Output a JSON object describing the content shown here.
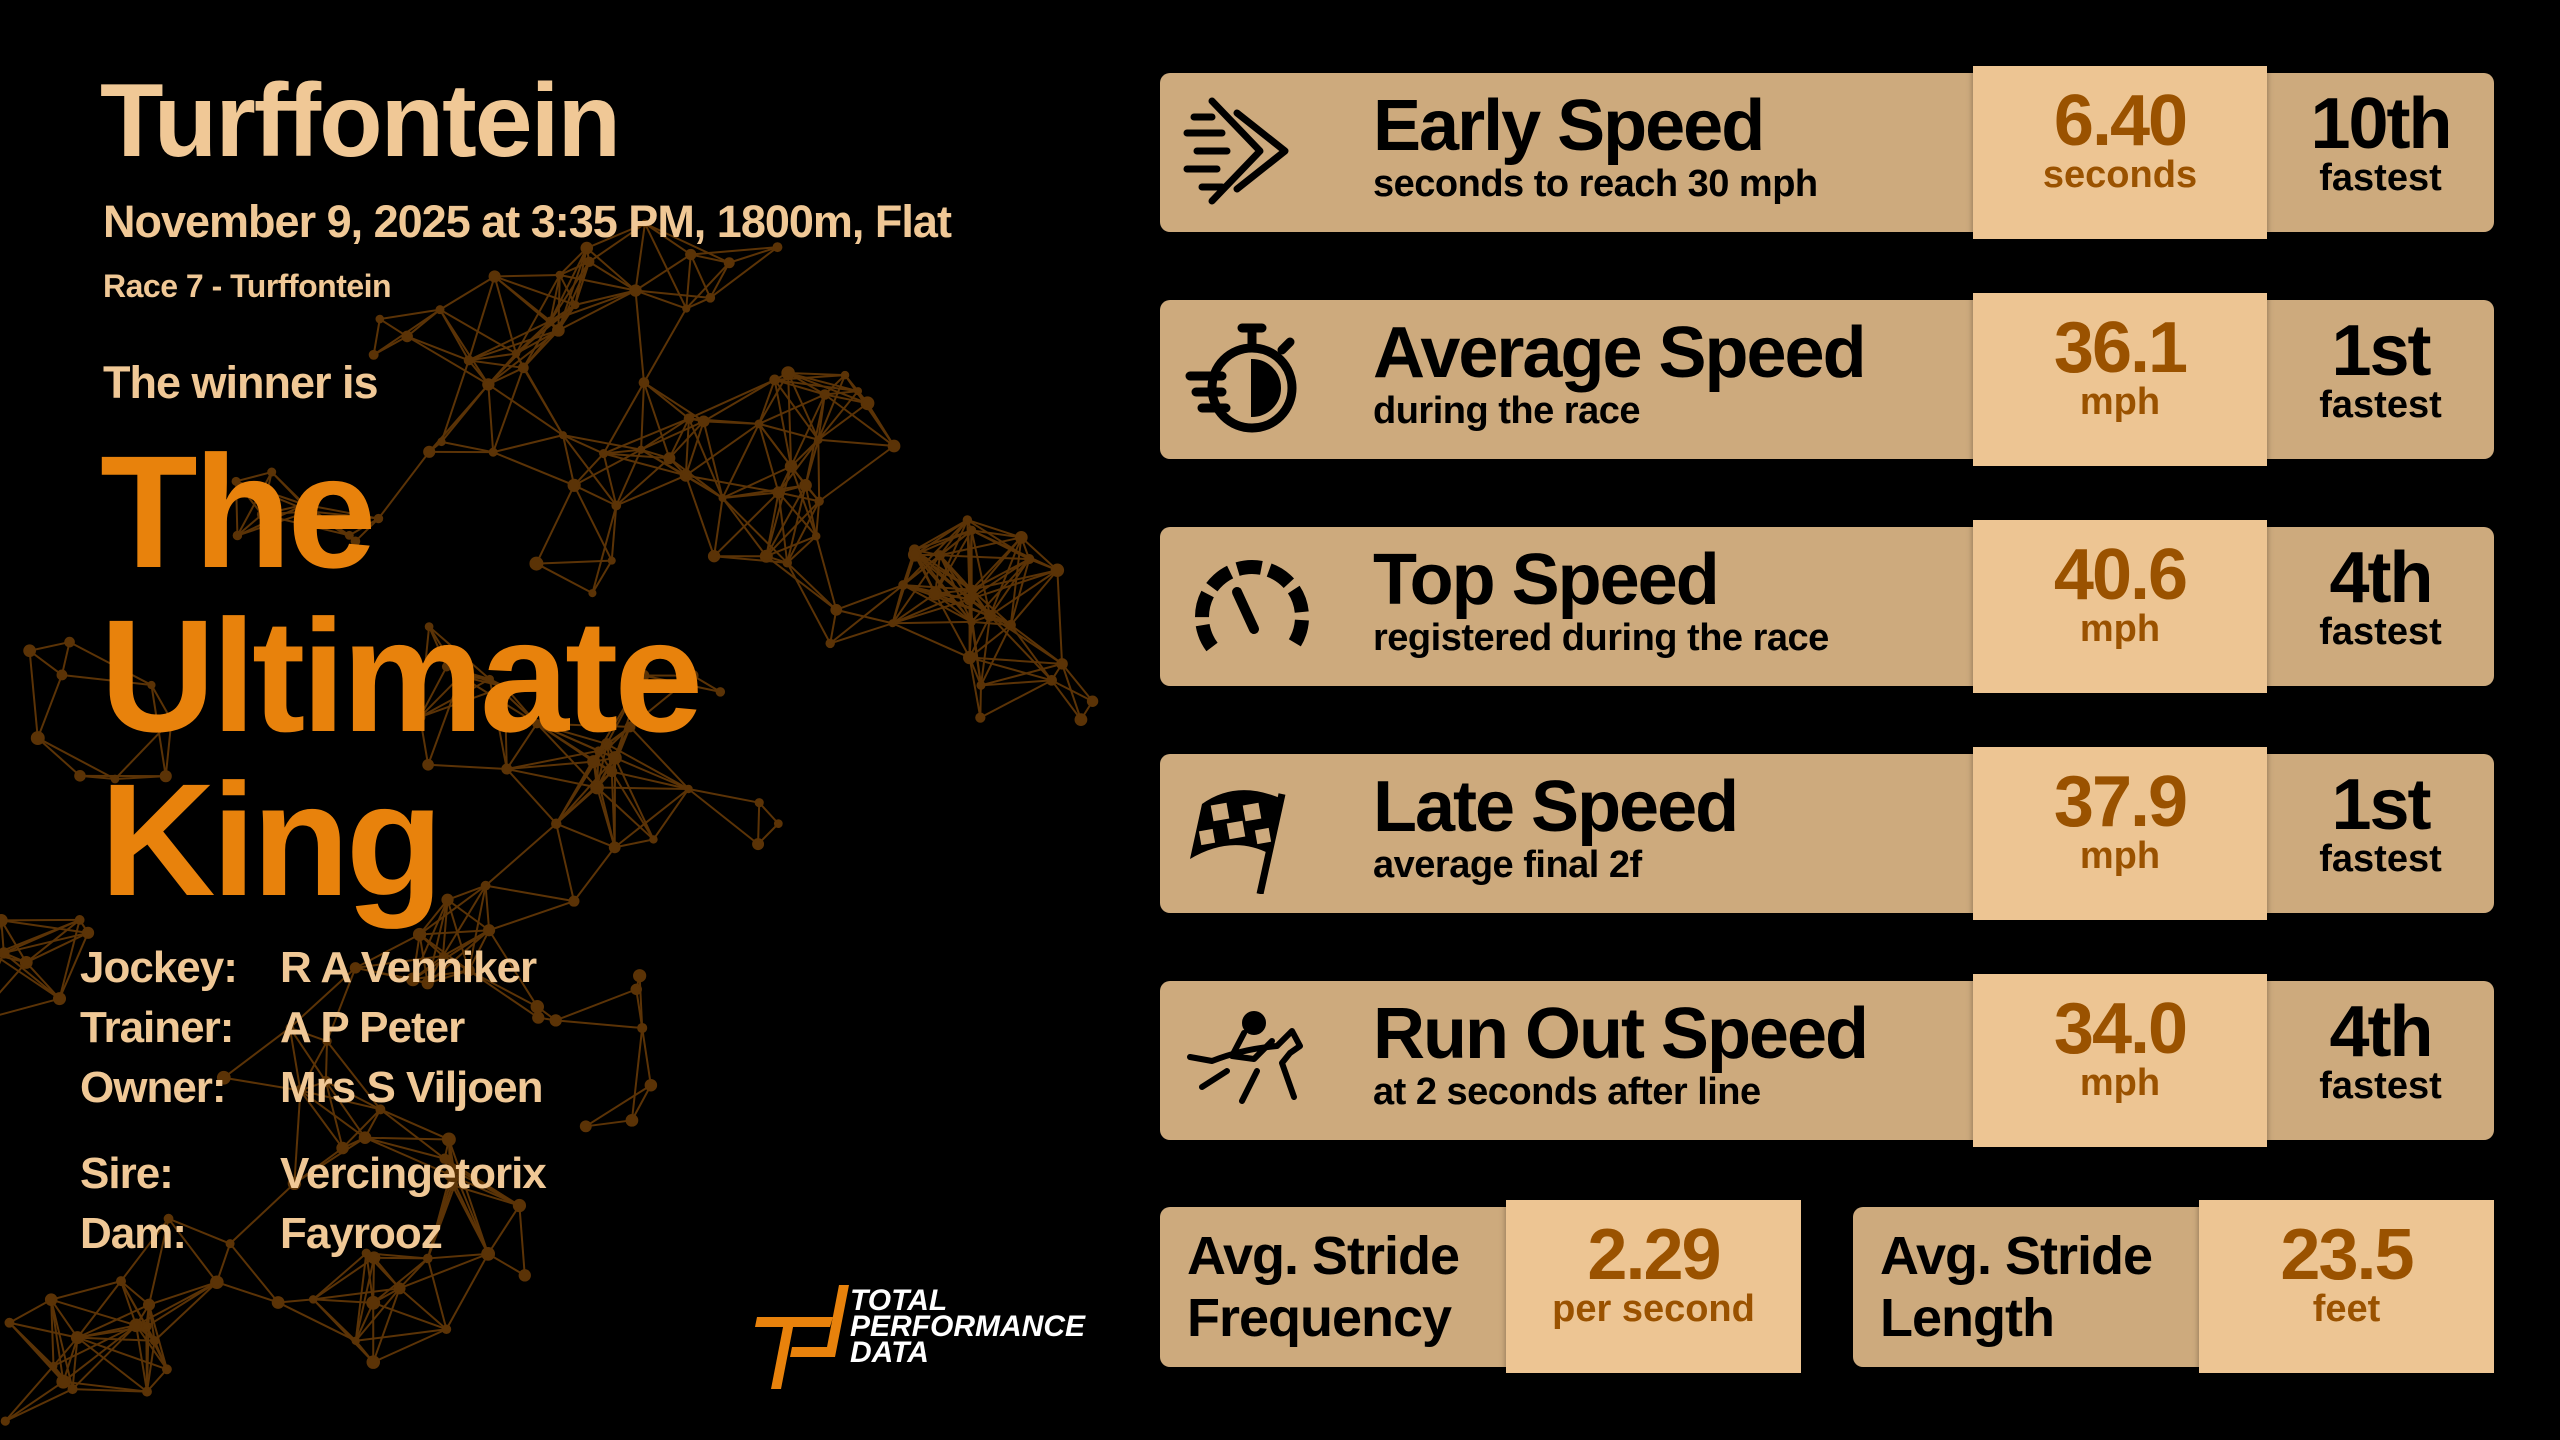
{
  "colors": {
    "background": "#000000",
    "accent": "#e8820c",
    "heading": "#f0c896",
    "card": "#cdaa7d",
    "highlight": "#edc593",
    "value": "#9a5200"
  },
  "race": {
    "venue": "Turffontein",
    "dateline": "November 9, 2025 at 3:35 PM, 1800m, Flat",
    "race_name": "Race 7 - Turffontein",
    "winner_intro": "The winner is",
    "winner_lines": [
      "The",
      "Ultimate",
      "King"
    ]
  },
  "connections": [
    {
      "label": "Jockey:",
      "value": "R A Venniker"
    },
    {
      "label": "Trainer:",
      "value": "A P Peter"
    },
    {
      "label": "Owner:",
      "value": "Mrs S Viljoen"
    },
    {
      "label": "Sire:",
      "value": "Vercingetorix"
    },
    {
      "label": "Dam:",
      "value": "Fayrooz"
    }
  ],
  "metrics": [
    {
      "icon": "speed-arrows-icon",
      "title": "Early Speed",
      "subtitle": "seconds to reach 30 mph",
      "value": "6.40",
      "unit": "seconds",
      "rank": "10th",
      "rank_label": "fastest"
    },
    {
      "icon": "stopwatch-icon",
      "title": "Average Speed",
      "subtitle": "during the race",
      "value": "36.1",
      "unit": "mph",
      "rank": "1st",
      "rank_label": "fastest"
    },
    {
      "icon": "speedometer-icon",
      "title": "Top Speed",
      "subtitle": "registered during the race",
      "value": "40.6",
      "unit": "mph",
      "rank": "4th",
      "rank_label": "fastest"
    },
    {
      "icon": "checkered-flag-icon",
      "title": "Late Speed",
      "subtitle": "average final 2f",
      "value": "37.9",
      "unit": "mph",
      "rank": "1st",
      "rank_label": "fastest"
    },
    {
      "icon": "racehorse-jockey-icon",
      "title": "Run Out Speed",
      "subtitle": "at 2 seconds after line",
      "value": "34.0",
      "unit": "mph",
      "rank": "4th",
      "rank_label": "fastest"
    }
  ],
  "stride": [
    {
      "label": "Avg. Stride Frequency",
      "value": "2.29",
      "unit": "per second"
    },
    {
      "label": "Avg. Stride Length",
      "value": "23.5",
      "unit": "feet"
    }
  ],
  "logo": {
    "lines": [
      "TOTAL",
      "PERFORMANCE",
      "DATA"
    ]
  }
}
